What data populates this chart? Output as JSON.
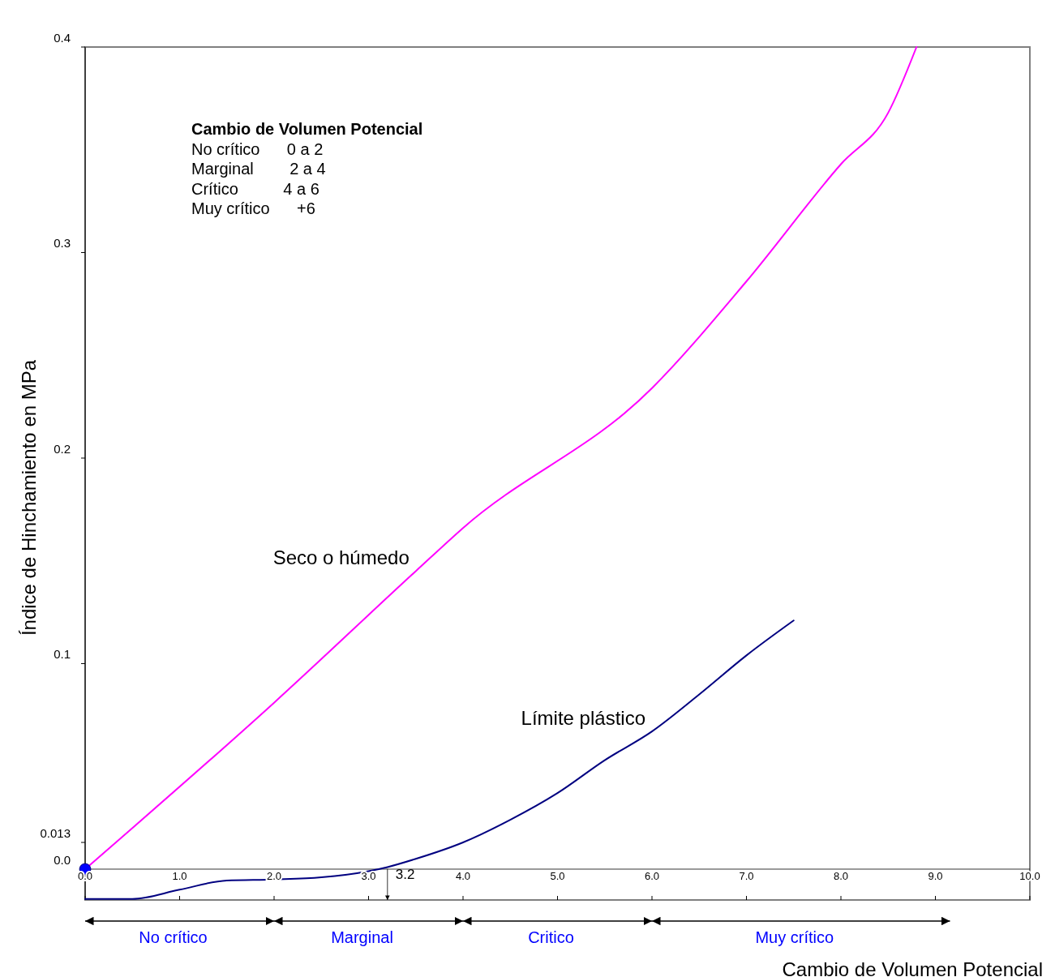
{
  "chart_data": {
    "type": "line",
    "xlabel": "Cambio de Volumen Potencial",
    "ylabel": "Índice de Hinchamiento en MPa",
    "xlim": [
      0,
      10
    ],
    "ylim": [
      -0.015,
      0.4
    ],
    "xticks": [
      {
        "value": 0,
        "label": "0.0"
      },
      {
        "value": 1,
        "label": "1.0"
      },
      {
        "value": 2,
        "label": "2.0"
      },
      {
        "value": 3,
        "label": "3.0"
      },
      {
        "value": 4,
        "label": "4.0"
      },
      {
        "value": 5,
        "label": "5.0"
      },
      {
        "value": 6,
        "label": "6.0"
      },
      {
        "value": 7,
        "label": "7.0"
      },
      {
        "value": 8,
        "label": "8.0"
      },
      {
        "value": 9,
        "label": "9.0"
      },
      {
        "value": 10,
        "label": "10.0"
      }
    ],
    "yticks": [
      {
        "value": 0,
        "label": "0.0"
      },
      0.013,
      {
        "value": 0.1,
        "label": "0.1"
      },
      {
        "value": 0.2,
        "label": "0.2"
      },
      {
        "value": 0.3,
        "label": "0.3"
      },
      {
        "value": 0.4,
        "label": "0.4"
      }
    ],
    "grid": false,
    "line_style": "solid",
    "marker": "none",
    "series": [
      {
        "name": "Seco o húmedo",
        "color": "#ff00ff",
        "x": [
          0,
          2,
          3.5,
          4,
          6,
          7,
          8,
          8.5,
          8.8
        ],
        "values": [
          0,
          0.081,
          0.145,
          0.166,
          0.234,
          0.286,
          0.343,
          0.368,
          0.4
        ]
      },
      {
        "name": "Límite plástico",
        "color": "#000080",
        "x": [
          0,
          0.5,
          1,
          1.5,
          2,
          2.5,
          3,
          3.2,
          3.5,
          4,
          4.5,
          5,
          5.5,
          6,
          6.5,
          7,
          7.5
        ],
        "values": [
          -0.0145,
          -0.0145,
          -0.01,
          -0.0055,
          -0.005,
          -0.004,
          -0.001,
          0.001,
          0.005,
          0.013,
          0.024,
          0.037,
          0.053,
          0.067,
          0.085,
          0.104,
          0.121
        ]
      },
      {
        "type": "scatter",
        "marker": "circle",
        "color": "#0000ff",
        "x": [
          0
        ],
        "values": [
          0
        ]
      }
    ],
    "annotations": [
      "Cambio de Volumen Potencial",
      "No crítico      0 a 2",
      "Marginal        2 a 4",
      "Crítico          4 a 6",
      "Muy crítico      +6",
      "No crítico",
      "Marginal",
      "Critico",
      "Muy crítico",
      {
        "text": "3.2",
        "x": 3.2,
        "y": 0
      }
    ]
  }
}
